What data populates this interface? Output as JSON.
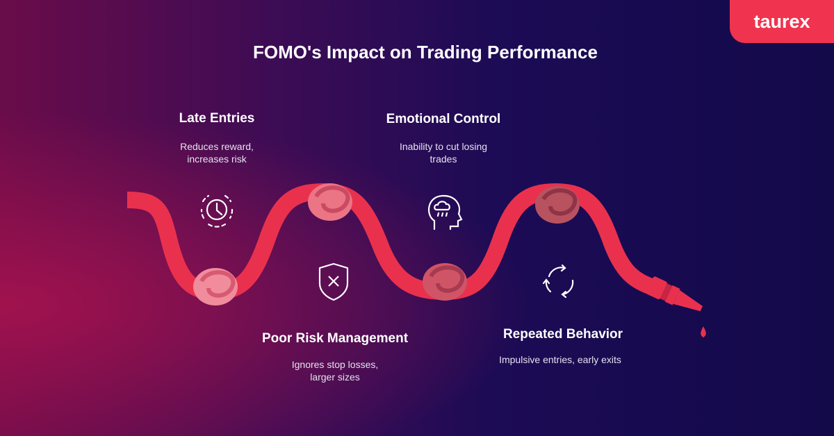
{
  "header": {
    "title": "FOMO's Impact on Trading Performance",
    "logo": "taurex"
  },
  "items": [
    {
      "title": "Late Entries",
      "description": "Reduces reward, increases risk"
    },
    {
      "title": "Emotional Control",
      "description": "Inability to cut losing trades"
    },
    {
      "title": "Poor Risk Management",
      "description": "Ignores stop losses, larger sizes"
    },
    {
      "title": "Repeated Behavior",
      "description": "Impulsive entries, early exits"
    }
  ]
}
